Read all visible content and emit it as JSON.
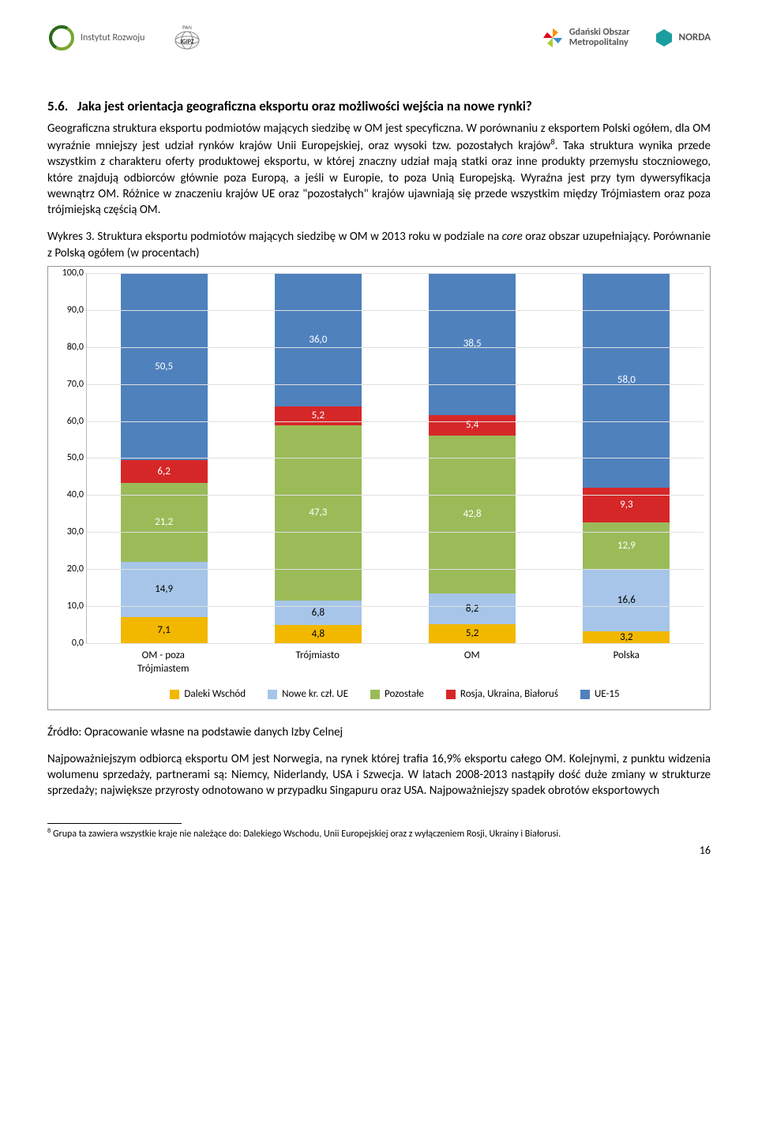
{
  "header": {
    "logos": [
      {
        "name": "instytut-rozwoju",
        "label": "Instytut Rozwoju"
      },
      {
        "name": "pan-igipz",
        "label": "PAN IGiPZ"
      },
      {
        "name": "gom",
        "label": "Gdański Obszar Metropolitalny"
      },
      {
        "name": "norda",
        "label": "NORDA"
      }
    ]
  },
  "section": {
    "number": "5.6.",
    "title": "Jaka jest orientacja geograficzna eksportu oraz możliwości wejścia na nowe rynki?"
  },
  "para1": "Geograficzna struktura eksportu podmiotów mających siedzibę w OM jest specyficzna. W porównaniu z eksportem Polski ogółem, dla OM wyraźnie mniejszy jest udział rynków krajów Unii Europejskiej, oraz wysoki tzw. pozostałych krajów",
  "para1_sup": "8",
  "para1_cont": ". Taka struktura wynika przede wszystkim z charakteru oferty produktowej eksportu, w której znaczny udział mają statki oraz inne produkty przemysłu stoczniowego, które znajdują odbiorców głównie poza Europą, a jeśli w Europie, to poza Unią Europejską. Wyraźna jest przy tym dywersyfikacja wewnątrz OM.  Różnice w znaczeniu krajów UE oraz \"pozostałych\" krajów ujawniają się przede wszystkim między Trójmiastem oraz poza trójmiejską częścią OM.",
  "wykres_label": "Wykres 3. Struktura eksportu podmiotów mających siedzibę w OM w 2013 roku w podziale na ",
  "wykres_italic": "core",
  "wykres_cont": " oraz obszar uzupełniający. Porównanie z Polską ogółem (w procentach)",
  "chart": {
    "type": "stacked-bar",
    "ylim": [
      0,
      100
    ],
    "ytick_step": 10,
    "categories": [
      "OM - poza Trójmiastem",
      "Trójmiasto",
      "OM",
      "Polska"
    ],
    "series": [
      {
        "key": "daleki",
        "label": "Daleki Wschód",
        "color": "#f2b800"
      },
      {
        "key": "nowe",
        "label": "Nowe kr. czł. UE",
        "color": "#a6c5e8"
      },
      {
        "key": "pozostale",
        "label": "Pozostałe",
        "color": "#9bbb59"
      },
      {
        "key": "rosja",
        "label": "Rosja, Ukraina, Białoruś",
        "color": "#d62728"
      },
      {
        "key": "ue15",
        "label": "UE-15",
        "color": "#4f81bd"
      }
    ],
    "data": [
      {
        "daleki": 7.1,
        "nowe": 14.9,
        "pozostale": 21.2,
        "rosja": 6.2,
        "ue15": 50.5
      },
      {
        "daleki": 4.8,
        "nowe": 6.8,
        "pozostale": 47.3,
        "rosja": 5.2,
        "ue15": 36.0
      },
      {
        "daleki": 5.2,
        "nowe": 8.2,
        "pozostale": 42.8,
        "rosja": 5.4,
        "ue15": 38.5
      },
      {
        "daleki": 3.2,
        "nowe": 16.6,
        "pozostale": 12.9,
        "rosja": 9.3,
        "ue15": 58.0
      }
    ],
    "grid_color": "#e0e0e0",
    "axis_fontsize": 12,
    "label_fontsize": 13
  },
  "source": "Źródło: Opracowanie własne na podstawie danych Izby Celnej",
  "para2": "Najpoważniejszym odbiorcą eksportu OM jest Norwegia, na rynek której trafia 16,9% eksportu całego OM. Kolejnymi, z punktu widzenia wolumenu sprzedaży, partnerami są: Niemcy, Niderlandy, USA i Szwecja.  W latach 2008-2013 nastąpiły dość duże zmiany w strukturze sprzedaży; największe przyrosty odnotowano w przypadku Singapuru oraz USA. Najpoważniejszy spadek obrotów eksportowych",
  "footnote_marker": "8",
  "footnote": " Grupa ta zawiera wszystkie kraje nie należące do: Dalekiego Wschodu, Unii Europejskiej oraz z wyłączeniem Rosji, Ukrainy i Białorusi.",
  "page_number": "16"
}
